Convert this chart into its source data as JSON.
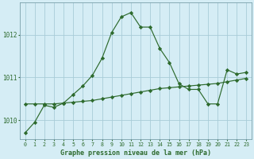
{
  "title": "Graphe pression niveau de la mer (hPa)",
  "background_color": "#d5edf5",
  "grid_color": "#a8ccd8",
  "line_color": "#2d6a2d",
  "marker_color": "#2d6a2d",
  "xlim": [
    -0.5,
    23.5
  ],
  "ylim": [
    1009.55,
    1012.75
  ],
  "yticks": [
    1010,
    1011,
    1012
  ],
  "xticks": [
    0,
    1,
    2,
    3,
    4,
    5,
    6,
    7,
    8,
    9,
    10,
    11,
    12,
    13,
    14,
    15,
    16,
    17,
    18,
    19,
    20,
    21,
    22,
    23
  ],
  "series": [
    {
      "x": [
        0,
        1,
        2,
        3,
        4,
        5,
        6,
        7,
        8,
        9,
        10,
        11,
        12,
        13,
        14,
        15,
        16,
        17,
        18,
        19,
        20,
        21,
        22,
        23
      ],
      "y": [
        1009.7,
        1009.95,
        1010.35,
        1010.3,
        1010.4,
        1010.6,
        1010.8,
        1011.05,
        1011.45,
        1012.05,
        1012.42,
        1012.52,
        1012.18,
        1012.18,
        1011.68,
        1011.35,
        1010.85,
        1010.72,
        1010.72,
        1010.38,
        1010.38,
        1011.18,
        1011.08,
        1011.12
      ]
    },
    {
      "x": [
        0,
        1,
        2,
        3,
        4,
        5,
        6,
        7,
        8,
        9,
        10,
        11,
        12,
        13,
        14,
        15,
        16,
        17,
        18,
        19,
        20,
        21,
        22,
        23
      ],
      "y": [
        1010.38,
        1010.38,
        1010.38,
        1010.38,
        1010.4,
        1010.42,
        1010.44,
        1010.46,
        1010.5,
        1010.54,
        1010.58,
        1010.62,
        1010.66,
        1010.7,
        1010.74,
        1010.76,
        1010.78,
        1010.8,
        1010.82,
        1010.84,
        1010.86,
        1010.9,
        1010.94,
        1010.98
      ]
    }
  ]
}
